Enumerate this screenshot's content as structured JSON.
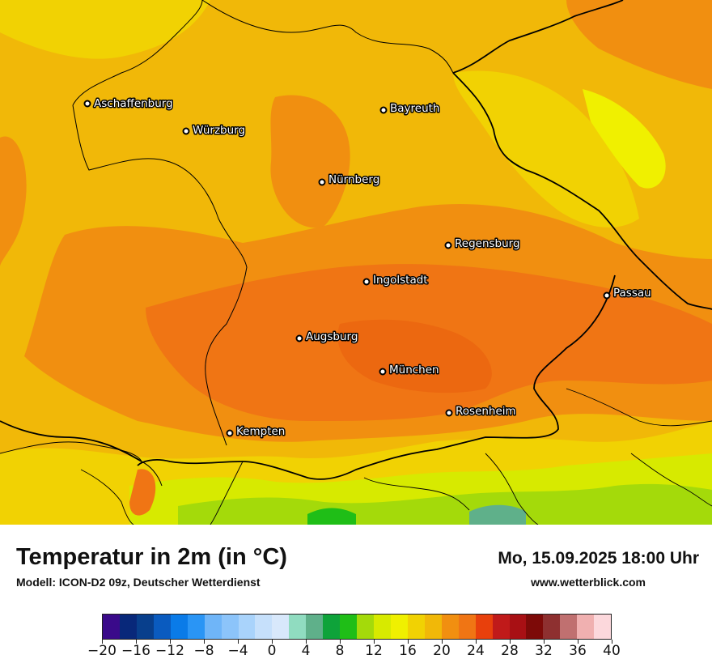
{
  "header": {
    "title": "Temperatur in 2m (in °C)",
    "model": "Modell: ICON-D2 09z, Deutscher Wetterdienst",
    "datetime": "Mo, 15.09.2025 18:00 Uhr",
    "website": "www.wetterblick.com"
  },
  "cities": [
    {
      "name": "Aschaffenburg",
      "id": "aschaffenburg"
    },
    {
      "name": "Würzburg",
      "id": "wuerzburg"
    },
    {
      "name": "Bayreuth",
      "id": "bayreuth"
    },
    {
      "name": "Nürnberg",
      "id": "nuernberg"
    },
    {
      "name": "Regensburg",
      "id": "regensburg"
    },
    {
      "name": "Ingolstadt",
      "id": "ingolstadt"
    },
    {
      "name": "Passau",
      "id": "passau"
    },
    {
      "name": "Augsburg",
      "id": "augsburg"
    },
    {
      "name": "München",
      "id": "muenchen"
    },
    {
      "name": "Rosenheim",
      "id": "rosenheim"
    },
    {
      "name": "Kempten",
      "id": "kempten"
    }
  ],
  "legend": {
    "tick_labels": [
      "−20",
      "−16",
      "−12",
      "−8",
      "−4",
      "0",
      "4",
      "8",
      "12",
      "16",
      "20",
      "24",
      "28",
      "32",
      "36",
      "40"
    ],
    "colors": [
      "#3a0a8a",
      "#08287a",
      "#083f8c",
      "#0a5bbf",
      "#0a7be8",
      "#2a95f5",
      "#6fb5f8",
      "#8cc4fa",
      "#a9d3fb",
      "#c6e0fb",
      "#d8e8fb",
      "#90dcc0",
      "#5fb08a",
      "#0ea33a",
      "#1fbe17",
      "#a4da0a",
      "#d7ea00",
      "#f0f000",
      "#f1d203",
      "#f1b808",
      "#f18f10",
      "#f07514",
      "#e8400c",
      "#c01a1a",
      "#a81014",
      "#7d0a08",
      "#8e3030",
      "#c07070",
      "#f0b0b0",
      "#fcd8dc"
    ]
  }
}
